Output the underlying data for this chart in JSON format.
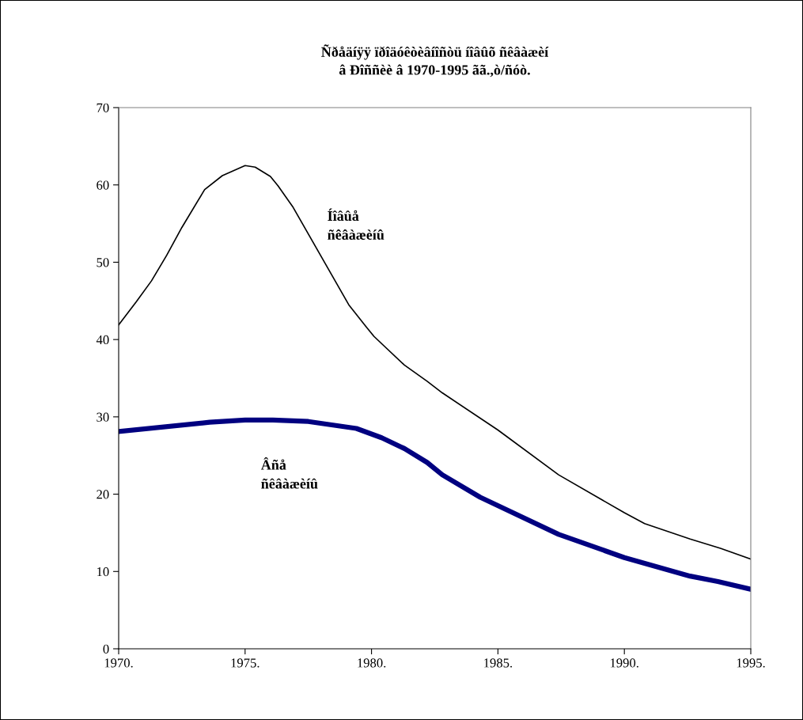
{
  "chart_data": {
    "type": "line",
    "title": "Ñðåäíÿÿ ïðîäóêòèâíîñòü íîâûõ ñêâàæèí\nâ Ðîññèè â 1970-1995 ãã.,ò/ñóò.",
    "series": [
      {
        "name": "Íîâûå\nñêâàæèíû",
        "color": "#000000",
        "x": [
          1970,
          1970.7,
          1971.3,
          1971.9,
          1972.5,
          1973.4,
          1974.1,
          1975,
          1975.4,
          1976,
          1976.3,
          1976.9,
          1978,
          1979.1,
          1979.8,
          1980.1,
          1981.3,
          1982.2,
          1982.8,
          1985,
          1987.4,
          1990,
          1990.8,
          1992.6,
          1993.8,
          1995
        ],
        "values": [
          41.9,
          44.9,
          47.6,
          50.9,
          54.5,
          59.4,
          61.2,
          62.5,
          62.3,
          61.1,
          59.9,
          57.1,
          50.8,
          44.5,
          41.6,
          40.4,
          36.7,
          34.6,
          33.1,
          28.3,
          22.5,
          17.6,
          16.2,
          14.2,
          13.0,
          11.6
        ]
      },
      {
        "name": "Âñå\nñêâàæèíû",
        "color": "#000080",
        "x": [
          1970,
          1973.6,
          1975,
          1976.1,
          1977.5,
          1979.4,
          1980.4,
          1981.3,
          1982.2,
          1982.8,
          1984.3,
          1987.4,
          1990,
          1992.6,
          1993.7,
          1995
        ],
        "values": [
          28.1,
          29.3,
          29.6,
          29.6,
          29.4,
          28.5,
          27.3,
          25.9,
          24.1,
          22.5,
          19.6,
          14.8,
          11.8,
          9.4,
          8.7,
          7.7
        ]
      }
    ],
    "xlim": [
      1970,
      1995
    ],
    "xticks": [
      {
        "value": 1970,
        "label": "1970."
      },
      {
        "value": 1975,
        "label": "1975."
      },
      {
        "value": 1980,
        "label": "1980."
      },
      {
        "value": 1985,
        "label": "1985."
      },
      {
        "value": 1990,
        "label": "1990."
      },
      {
        "value": 1995,
        "label": "1995."
      }
    ],
    "ylim": [
      0,
      70
    ],
    "yticks": [
      0,
      10,
      20,
      30,
      40,
      50,
      60,
      70
    ],
    "grid": false,
    "legend": false
  }
}
